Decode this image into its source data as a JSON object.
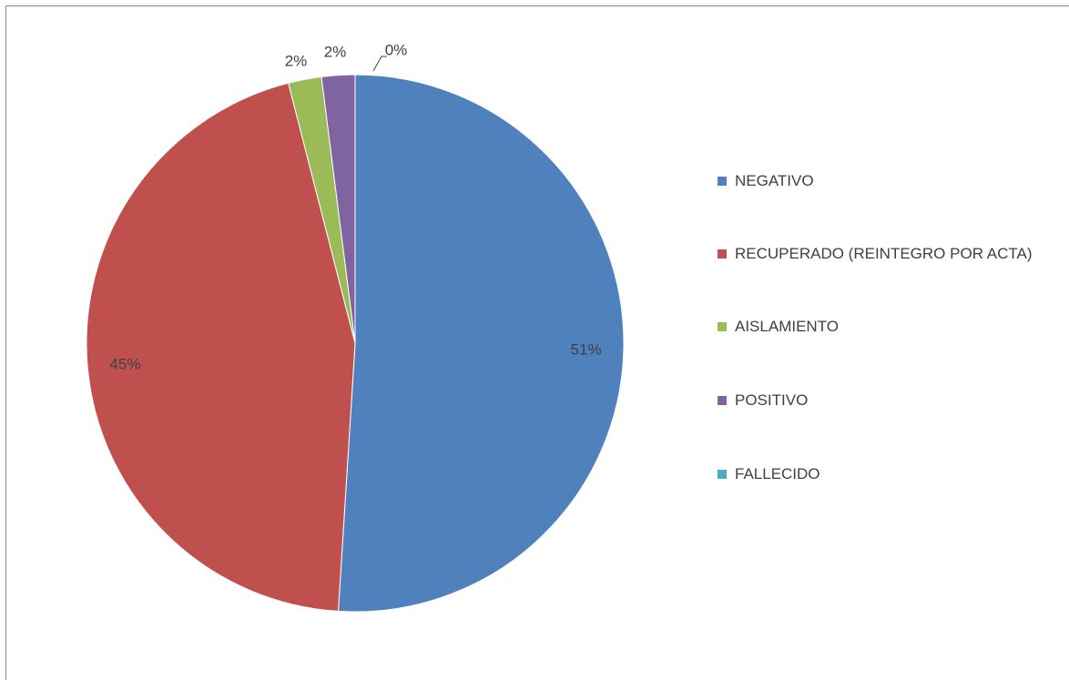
{
  "chart_data": {
    "type": "pie",
    "categories": [
      "NEGATIVO",
      "RECUPERADO (REINTEGRO POR ACTA)",
      "AISLAMIENTO",
      "POSITIVO",
      "FALLECIDO"
    ],
    "values": [
      51,
      45,
      2,
      2,
      0
    ],
    "value_labels": [
      "51%",
      "45%",
      "2%",
      "2%",
      "0%"
    ],
    "colors": [
      "#4f81bd",
      "#c0504d",
      "#9bbb59",
      "#8064a2",
      "#4bacc6"
    ],
    "legend": "right"
  }
}
